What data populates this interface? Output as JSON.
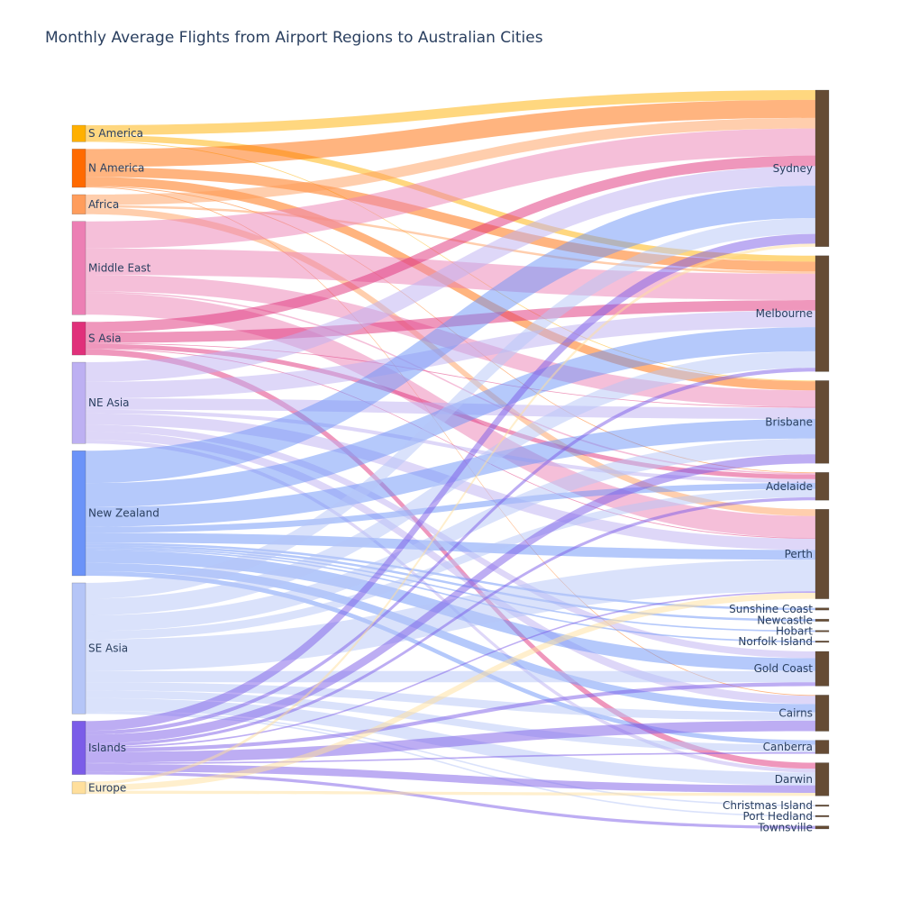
{
  "chart_data": {
    "type": "sankey",
    "title": "Monthly Average Flights from Airport Regions to Australian Cities",
    "sources": [
      {
        "name": "S America",
        "color": "#FFB000"
      },
      {
        "name": "N America",
        "color": "#FF6A00"
      },
      {
        "name": "Africa",
        "color": "#FF9D5C"
      },
      {
        "name": "Middle East",
        "color": "#EC7FB4"
      },
      {
        "name": "S Asia",
        "color": "#E0307A"
      },
      {
        "name": "NE Asia",
        "color": "#BDB0F2"
      },
      {
        "name": "New Zealand",
        "color": "#6B93F8"
      },
      {
        "name": "SE Asia",
        "color": "#B5C5F7"
      },
      {
        "name": "Islands",
        "color": "#7B5CE8"
      },
      {
        "name": "Europe",
        "color": "#FFDF9C"
      }
    ],
    "targets": [
      {
        "name": "Sydney"
      },
      {
        "name": "Melbourne"
      },
      {
        "name": "Brisbane"
      },
      {
        "name": "Adelaide"
      },
      {
        "name": "Perth"
      },
      {
        "name": "Sunshine Coast"
      },
      {
        "name": "Newcastle"
      },
      {
        "name": "Hobart"
      },
      {
        "name": "Norfolk Island"
      },
      {
        "name": "Gold Coast"
      },
      {
        "name": "Cairns"
      },
      {
        "name": "Canberra"
      },
      {
        "name": "Darwin"
      },
      {
        "name": "Christmas Island"
      },
      {
        "name": "Port Hedland"
      },
      {
        "name": "Townsville"
      }
    ],
    "target_color": "#654B34",
    "links": [
      {
        "source": "S America",
        "target": "Sydney",
        "value": 13
      },
      {
        "source": "S America",
        "target": "Melbourne",
        "value": 8
      },
      {
        "source": "S America",
        "target": "Brisbane",
        "value": 1
      },
      {
        "source": "N America",
        "target": "Sydney",
        "value": 24
      },
      {
        "source": "N America",
        "target": "Melbourne",
        "value": 13
      },
      {
        "source": "N America",
        "target": "Brisbane",
        "value": 12
      },
      {
        "source": "N America",
        "target": "Adelaide",
        "value": 1
      },
      {
        "source": "N America",
        "target": "Cairns",
        "value": 1
      },
      {
        "source": "Africa",
        "target": "Sydney",
        "value": 14
      },
      {
        "source": "Africa",
        "target": "Melbourne",
        "value": 3
      },
      {
        "source": "Africa",
        "target": "Perth",
        "value": 9
      },
      {
        "source": "Middle East",
        "target": "Sydney",
        "value": 36
      },
      {
        "source": "Middle East",
        "target": "Melbourne",
        "value": 35
      },
      {
        "source": "Middle East",
        "target": "Brisbane",
        "value": 22
      },
      {
        "source": "Middle East",
        "target": "Adelaide",
        "value": 2
      },
      {
        "source": "Middle East",
        "target": "Perth",
        "value": 29
      },
      {
        "source": "S Asia",
        "target": "Sydney",
        "value": 14
      },
      {
        "source": "S Asia",
        "target": "Melbourne",
        "value": 14
      },
      {
        "source": "S Asia",
        "target": "Brisbane",
        "value": 1
      },
      {
        "source": "S Asia",
        "target": "Adelaide",
        "value": 6
      },
      {
        "source": "S Asia",
        "target": "Perth",
        "value": 1
      },
      {
        "source": "S Asia",
        "target": "Darwin",
        "value": 8
      },
      {
        "source": "NE Asia",
        "target": "Sydney",
        "value": 26
      },
      {
        "source": "NE Asia",
        "target": "Melbourne",
        "value": 22
      },
      {
        "source": "NE Asia",
        "target": "Brisbane",
        "value": 15
      },
      {
        "source": "NE Asia",
        "target": "Adelaide",
        "value": 5
      },
      {
        "source": "NE Asia",
        "target": "Perth",
        "value": 15
      },
      {
        "source": "NE Asia",
        "target": "Gold Coast",
        "value": 9
      },
      {
        "source": "NE Asia",
        "target": "Cairns",
        "value": 11
      },
      {
        "source": "NE Asia",
        "target": "Darwin",
        "value": 5
      },
      {
        "source": "New Zealand",
        "target": "Sydney",
        "value": 43
      },
      {
        "source": "New Zealand",
        "target": "Melbourne",
        "value": 32
      },
      {
        "source": "New Zealand",
        "target": "Brisbane",
        "value": 26
      },
      {
        "source": "New Zealand",
        "target": "Adelaide",
        "value": 8
      },
      {
        "source": "New Zealand",
        "target": "Perth",
        "value": 13
      },
      {
        "source": "New Zealand",
        "target": "Sunshine Coast",
        "value": 3
      },
      {
        "source": "New Zealand",
        "target": "Newcastle",
        "value": 3
      },
      {
        "source": "New Zealand",
        "target": "Hobart",
        "value": 2
      },
      {
        "source": "New Zealand",
        "target": "Norfolk Island",
        "value": 2
      },
      {
        "source": "New Zealand",
        "target": "Gold Coast",
        "value": 17
      },
      {
        "source": "New Zealand",
        "target": "Cairns",
        "value": 11
      },
      {
        "source": "New Zealand",
        "target": "Canberra",
        "value": 6
      },
      {
        "source": "SE Asia",
        "target": "Sydney",
        "value": 21
      },
      {
        "source": "SE Asia",
        "target": "Melbourne",
        "value": 22
      },
      {
        "source": "SE Asia",
        "target": "Brisbane",
        "value": 21
      },
      {
        "source": "SE Asia",
        "target": "Adelaide",
        "value": 11
      },
      {
        "source": "SE Asia",
        "target": "Perth",
        "value": 42
      },
      {
        "source": "SE Asia",
        "target": "Gold Coast",
        "value": 15
      },
      {
        "source": "SE Asia",
        "target": "Cairns",
        "value": 11
      },
      {
        "source": "SE Asia",
        "target": "Canberra",
        "value": 10
      },
      {
        "source": "SE Asia",
        "target": "Darwin",
        "value": 17
      },
      {
        "source": "SE Asia",
        "target": "Christmas Island",
        "value": 2
      },
      {
        "source": "SE Asia",
        "target": "Port Hedland",
        "value": 2
      },
      {
        "source": "Islands",
        "target": "Sydney",
        "value": 13
      },
      {
        "source": "Islands",
        "target": "Melbourne",
        "value": 5
      },
      {
        "source": "Islands",
        "target": "Brisbane",
        "value": 12
      },
      {
        "source": "Islands",
        "target": "Adelaide",
        "value": 4
      },
      {
        "source": "Islands",
        "target": "Perth",
        "value": 2
      },
      {
        "source": "Islands",
        "target": "Gold Coast",
        "value": 5
      },
      {
        "source": "Islands",
        "target": "Cairns",
        "value": 14
      },
      {
        "source": "Islands",
        "target": "Canberra",
        "value": 2
      },
      {
        "source": "Islands",
        "target": "Darwin",
        "value": 10
      },
      {
        "source": "Islands",
        "target": "Townsville",
        "value": 4
      },
      {
        "source": "Europe",
        "target": "Sydney",
        "value": 4
      },
      {
        "source": "Europe",
        "target": "Perth",
        "value": 8
      },
      {
        "source": "Europe",
        "target": "Darwin",
        "value": 4
      }
    ]
  }
}
